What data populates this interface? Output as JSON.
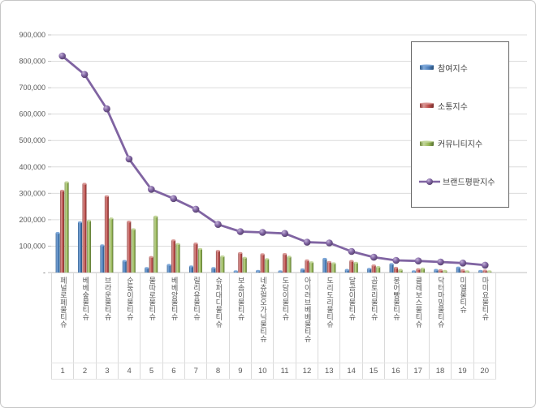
{
  "chart_data": {
    "type": "bar+line combo",
    "title": "",
    "categories": [
      "페널로페물티슈",
      "베베숲물티슈",
      "브라운물티슈",
      "순둥이물티슈",
      "물따로물티슈",
      "베베앙물티슈",
      "릴리유물티슈",
      "슈퍼대디물티슈",
      "보솜이물티슈",
      "네츄럴오가닉물티슈",
      "도담이물티슈",
      "아이러브베베물티슈",
      "도리도리물티슈",
      "달곰이물티슈",
      "곰토리물티슈",
      "붕어빵물티슈",
      "클레보스물티슈",
      "닥터마밍물티슈",
      "미엘물티슈",
      "마미요물티슈"
    ],
    "ranks": [
      "1",
      "2",
      "3",
      "4",
      "5",
      "6",
      "7",
      "8",
      "9",
      "10",
      "11",
      "12",
      "13",
      "14",
      "15",
      "16",
      "17",
      "18",
      "19",
      "20"
    ],
    "series": [
      {
        "key": "participation",
        "name": "참여지수",
        "type": "bar",
        "color": "#4F81BD",
        "values": [
          150000,
          190000,
          103000,
          44000,
          17000,
          29000,
          23000,
          17000,
          5000,
          6000,
          5000,
          12000,
          52000,
          10000,
          14000,
          32000,
          5000,
          10000,
          19000,
          6000
        ]
      },
      {
        "key": "communication",
        "name": "소통지수",
        "type": "bar",
        "color": "#C0504D",
        "values": [
          310000,
          336000,
          289000,
          193000,
          59000,
          122000,
          110000,
          82000,
          74000,
          69000,
          70000,
          46000,
          40000,
          44000,
          27000,
          18000,
          13000,
          9000,
          9000,
          8000
        ]
      },
      {
        "key": "community",
        "name": "커뮤니티지수",
        "type": "bar",
        "color": "#9BBB59",
        "values": [
          342000,
          196000,
          205000,
          164000,
          212000,
          108000,
          89000,
          61000,
          56000,
          51000,
          60000,
          39000,
          35000,
          37000,
          21000,
          10000,
          15000,
          6000,
          5000,
          3000
        ]
      },
      {
        "key": "brand",
        "name": "브랜드평판지수",
        "type": "line",
        "color": "#8064A2",
        "values": [
          820000,
          750000,
          620000,
          430000,
          315000,
          280000,
          240000,
          182000,
          155000,
          152000,
          148000,
          115000,
          112000,
          80000,
          58000,
          46000,
          44000,
          40000,
          36000,
          28000
        ]
      }
    ],
    "ylim": [
      0,
      900000
    ],
    "ytick_step": 100000,
    "ytick_labels": [
      "-",
      "100,000",
      "200,000",
      "300,000",
      "400,000",
      "500,000",
      "600,000",
      "700,000",
      "800,000",
      "900,000"
    ],
    "grid": true,
    "legend_position": "inside-top-right"
  }
}
